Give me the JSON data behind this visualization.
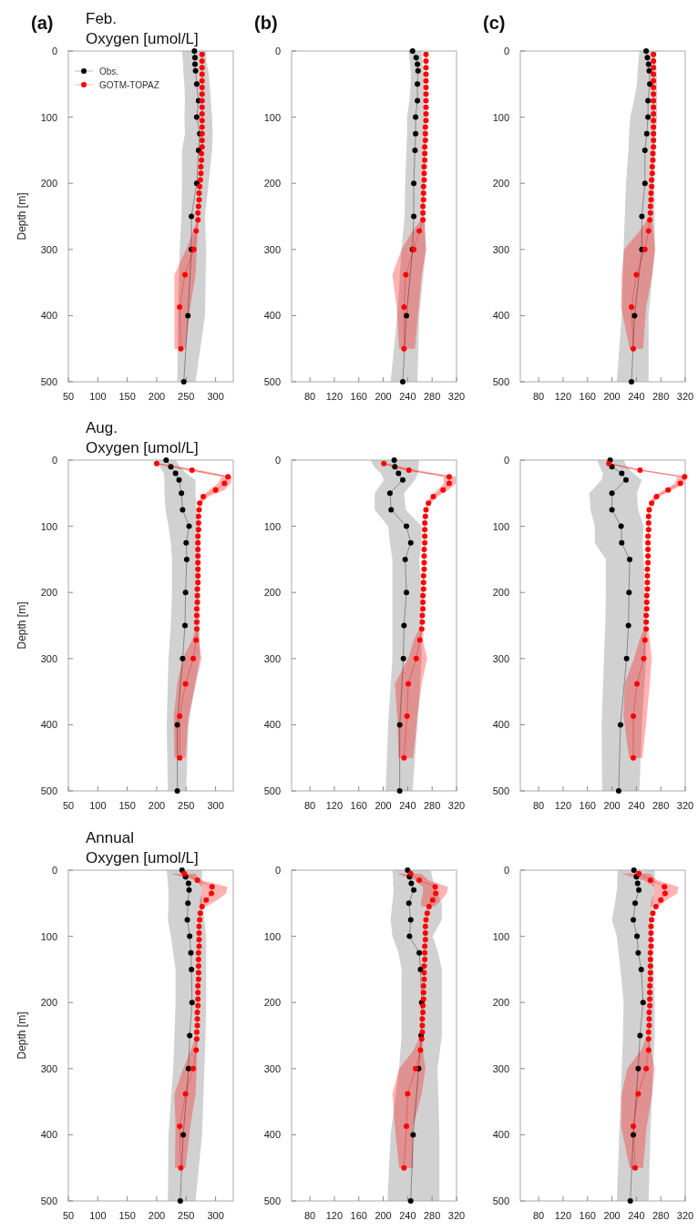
{
  "chart_data": [
    {
      "type": "line",
      "orientation": "horizontal",
      "title": "Feb.",
      "subtitle": "Oxygen [umol/L]",
      "ylabel": "Depth [m]",
      "annotations": [
        "(a)"
      ],
      "xlim": [
        50,
        330
      ],
      "xticks": [
        50,
        100,
        150,
        200,
        250,
        300
      ],
      "ylim": [
        500,
        0
      ],
      "yticks": [
        0,
        100,
        200,
        300,
        400,
        500
      ],
      "marker": "circle",
      "legend": "top left",
      "series": [
        {
          "name": "Obs.",
          "color": "#000000",
          "values": [
            264,
            265,
            265,
            266,
            268,
            271,
            268,
            273,
            271,
            268,
            259,
            259,
            253,
            246
          ],
          "x": [
            0,
            10,
            20,
            30,
            50,
            75,
            100,
            125,
            150,
            200,
            250,
            300,
            400,
            500
          ],
          "lower": [
            243,
            244,
            245,
            245,
            247,
            248,
            247,
            248,
            243,
            243,
            242,
            239,
            236,
            235
          ],
          "upper": [
            284,
            284,
            285,
            288,
            290,
            292,
            294,
            295,
            294,
            288,
            282,
            284,
            282,
            266
          ]
        },
        {
          "name": "GOTM-TOPAZ",
          "color": "#ff0000",
          "values": [
            277,
            277,
            277,
            277,
            277,
            277,
            277,
            277,
            277,
            277,
            277,
            277,
            277,
            277,
            277,
            276,
            276,
            275,
            275,
            274,
            273,
            272,
            272,
            271,
            270,
            270,
            267,
            263,
            248,
            239,
            241
          ],
          "x": [
            5,
            15,
            25,
            35,
            45,
            55,
            65,
            75,
            85,
            95,
            105,
            115,
            125,
            135,
            145,
            155,
            165,
            175,
            185,
            195,
            205,
            215,
            225,
            235,
            245,
            255,
            272,
            300,
            338,
            387,
            450
          ],
          "lower": [
            null,
            null,
            null,
            null,
            null,
            null,
            null,
            null,
            null,
            null,
            null,
            null,
            null,
            null,
            null,
            null,
            null,
            null,
            null,
            null,
            null,
            null,
            null,
            null,
            null,
            268,
            262,
            250,
            230,
            230,
            230
          ],
          "upper": [
            null,
            null,
            null,
            null,
            null,
            null,
            null,
            null,
            null,
            null,
            null,
            null,
            null,
            null,
            null,
            null,
            null,
            null,
            null,
            null,
            null,
            null,
            null,
            null,
            null,
            272,
            270,
            268,
            266,
            257,
            249
          ]
        }
      ]
    },
    {
      "type": "line",
      "orientation": "horizontal",
      "annotations": [
        "(b)"
      ],
      "xlim": [
        50,
        320
      ],
      "xticks": [
        80,
        120,
        160,
        200,
        240,
        280,
        320
      ],
      "ylim": [
        500,
        0
      ],
      "yticks": [
        0,
        100,
        200,
        300,
        400,
        500
      ],
      "marker": "circle",
      "series": [
        {
          "color": "#000000",
          "values": [
            248,
            254,
            256,
            257,
            256,
            256,
            253,
            253,
            252,
            250,
            250,
            248,
            238,
            232
          ],
          "x": [
            0,
            10,
            20,
            30,
            50,
            75,
            100,
            125,
            150,
            200,
            250,
            300,
            400,
            500
          ],
          "lower": [
            241,
            243,
            244,
            245,
            245,
            243,
            239,
            239,
            238,
            236,
            235,
            230,
            223,
            212
          ],
          "upper": [
            263,
            264,
            265,
            266,
            267,
            267,
            268,
            269,
            269,
            267,
            268,
            270,
            259,
            256
          ]
        },
        {
          "color": "#ff0000",
          "values": [
            270,
            270,
            270,
            270,
            270,
            270,
            270,
            270,
            270,
            270,
            270,
            269,
            269,
            269,
            268,
            268,
            268,
            267,
            267,
            267,
            266,
            266,
            266,
            265,
            265,
            265,
            259,
            250,
            237,
            234,
            234
          ],
          "x": [
            5,
            15,
            25,
            35,
            45,
            55,
            65,
            75,
            85,
            95,
            105,
            115,
            125,
            135,
            145,
            155,
            165,
            175,
            185,
            195,
            205,
            215,
            225,
            235,
            245,
            255,
            272,
            300,
            338,
            387,
            450
          ],
          "lower": [
            null,
            null,
            null,
            null,
            null,
            null,
            null,
            null,
            null,
            null,
            null,
            null,
            null,
            null,
            null,
            null,
            null,
            null,
            null,
            null,
            null,
            null,
            null,
            null,
            null,
            262,
            248,
            230,
            215,
            222,
            226
          ],
          "upper": [
            null,
            null,
            null,
            null,
            null,
            null,
            null,
            null,
            null,
            null,
            null,
            null,
            null,
            null,
            null,
            null,
            null,
            null,
            null,
            null,
            null,
            null,
            null,
            null,
            null,
            268,
            268,
            270,
            263,
            258,
            252
          ]
        }
      ]
    },
    {
      "type": "line",
      "orientation": "horizontal",
      "annotations": [
        "(c)"
      ],
      "xlim": [
        50,
        320
      ],
      "xticks": [
        80,
        120,
        160,
        200,
        240,
        280,
        320
      ],
      "ylim": [
        500,
        0
      ],
      "yticks": [
        0,
        100,
        200,
        300,
        400,
        500
      ],
      "marker": "circle",
      "series": [
        {
          "color": "#000000",
          "values": [
            256,
            258,
            260,
            261,
            262,
            259,
            259,
            257,
            254,
            254,
            249,
            249,
            237,
            232
          ],
          "x": [
            0,
            10,
            20,
            30,
            50,
            75,
            100,
            125,
            150,
            200,
            250,
            300,
            400,
            500
          ],
          "lower": [
            245,
            244,
            243,
            242,
            241,
            236,
            230,
            228,
            227,
            223,
            221,
            219,
            216,
            208
          ],
          "upper": [
            270,
            271,
            272,
            273,
            274,
            274,
            274,
            272,
            270,
            269,
            270,
            270,
            260,
            260
          ]
        },
        {
          "color": "#ff0000",
          "values": [
            268,
            268,
            268,
            268,
            268,
            268,
            268,
            268,
            268,
            268,
            268,
            268,
            268,
            268,
            268,
            267,
            267,
            266,
            266,
            265,
            265,
            264,
            264,
            263,
            263,
            262,
            260,
            254,
            240,
            232,
            235
          ],
          "x": [
            5,
            15,
            25,
            35,
            45,
            55,
            65,
            75,
            85,
            95,
            105,
            115,
            125,
            135,
            145,
            155,
            165,
            175,
            185,
            195,
            205,
            215,
            225,
            235,
            245,
            255,
            272,
            300,
            338,
            387,
            450
          ],
          "lower": [
            null,
            null,
            null,
            null,
            null,
            null,
            null,
            null,
            null,
            null,
            null,
            null,
            null,
            null,
            null,
            null,
            null,
            null,
            null,
            null,
            null,
            null,
            null,
            null,
            null,
            258,
            245,
            220,
            216,
            215,
            229
          ],
          "upper": [
            null,
            null,
            null,
            null,
            null,
            null,
            null,
            null,
            null,
            null,
            null,
            null,
            null,
            null,
            null,
            null,
            null,
            null,
            null,
            null,
            null,
            null,
            null,
            null,
            null,
            266,
            268,
            271,
            266,
            256,
            251
          ]
        }
      ]
    },
    {
      "type": "line",
      "orientation": "horizontal",
      "title": "Aug.",
      "subtitle": "Oxygen [umol/L]",
      "ylabel": "Depth [m]",
      "xlim": [
        50,
        330
      ],
      "xticks": [
        50,
        100,
        150,
        200,
        250,
        300
      ],
      "ylim": [
        500,
        0
      ],
      "yticks": [
        0,
        100,
        200,
        300,
        400,
        500
      ],
      "marker": "circle",
      "series": [
        {
          "color": "#000000",
          "values": [
            216,
            224,
            232,
            238,
            242,
            244,
            255,
            250,
            251,
            249,
            248,
            244,
            235,
            235
          ],
          "x": [
            0,
            10,
            20,
            30,
            50,
            75,
            100,
            125,
            150,
            200,
            250,
            300,
            400,
            500
          ],
          "lower": [
            198,
            205,
            212,
            213,
            213,
            215,
            220,
            224,
            226,
            226,
            224,
            220,
            217,
            219
          ],
          "upper": [
            232,
            240,
            250,
            266,
            266,
            267,
            273,
            273,
            273,
            273,
            273,
            273,
            254,
            250
          ]
        },
        {
          "color": "#ff0000",
          "values": [
            200,
            260,
            321,
            315,
            300,
            279,
            273,
            272,
            271,
            271,
            271,
            270,
            270,
            270,
            270,
            270,
            270,
            270,
            270,
            269,
            269,
            269,
            268,
            268,
            268,
            268,
            267,
            262,
            249,
            239,
            239
          ],
          "x": [
            5,
            15,
            25,
            35,
            45,
            55,
            65,
            75,
            85,
            95,
            105,
            115,
            125,
            135,
            145,
            155,
            165,
            175,
            185,
            195,
            205,
            215,
            225,
            235,
            245,
            255,
            272,
            300,
            338,
            387,
            450
          ],
          "lower": [
            195,
            250,
            310,
            304,
            289,
            277,
            270,
            null,
            null,
            null,
            null,
            null,
            null,
            null,
            null,
            null,
            null,
            null,
            null,
            null,
            null,
            null,
            null,
            null,
            null,
            266,
            260,
            244,
            235,
            229,
            230
          ],
          "upper": [
            203,
            273,
            328,
            326,
            315,
            288,
            276,
            null,
            null,
            null,
            null,
            null,
            null,
            null,
            null,
            null,
            null,
            null,
            null,
            null,
            null,
            null,
            null,
            null,
            null,
            271,
            272,
            276,
            266,
            254,
            249
          ]
        }
      ]
    },
    {
      "type": "line",
      "orientation": "horizontal",
      "xlim": [
        50,
        320
      ],
      "xticks": [
        80,
        120,
        160,
        200,
        240,
        280,
        320
      ],
      "ylim": [
        500,
        0
      ],
      "yticks": [
        0,
        100,
        200,
        300,
        400,
        500
      ],
      "marker": "circle",
      "series": [
        {
          "color": "#000000",
          "values": [
            218,
            219,
            225,
            232,
            211,
            213,
            238,
            245,
            236,
            238,
            234,
            233,
            227,
            227
          ],
          "x": [
            0,
            10,
            20,
            30,
            50,
            75,
            100,
            125,
            150,
            200,
            250,
            300,
            400,
            500
          ],
          "lower": [
            179,
            185,
            196,
            201,
            186,
            186,
            208,
            211,
            215,
            215,
            215,
            215,
            208,
            204
          ],
          "upper": [
            259,
            258,
            257,
            252,
            234,
            237,
            263,
            263,
            259,
            263,
            263,
            263,
            256,
            248
          ]
        },
        {
          "color": "#ff0000",
          "values": [
            201,
            242,
            308,
            308,
            298,
            282,
            274,
            270,
            269,
            268,
            268,
            268,
            268,
            267,
            267,
            267,
            267,
            266,
            266,
            266,
            265,
            265,
            265,
            264,
            264,
            263,
            260,
            254,
            241,
            239,
            234
          ],
          "x": [
            5,
            15,
            25,
            35,
            45,
            55,
            65,
            75,
            85,
            95,
            105,
            115,
            125,
            135,
            145,
            155,
            165,
            175,
            185,
            195,
            205,
            215,
            225,
            235,
            245,
            255,
            272,
            300,
            338,
            387,
            450
          ],
          "lower": [
            197,
            233,
            299,
            299,
            289,
            278,
            271,
            null,
            null,
            null,
            null,
            null,
            null,
            null,
            null,
            null,
            null,
            null,
            null,
            null,
            null,
            null,
            null,
            null,
            null,
            259,
            250,
            241,
            219,
            223,
            225
          ],
          "upper": [
            208,
            255,
            319,
            319,
            307,
            289,
            278,
            null,
            null,
            null,
            null,
            null,
            null,
            null,
            null,
            null,
            null,
            null,
            null,
            null,
            null,
            null,
            null,
            null,
            null,
            266,
            265,
            272,
            263,
            256,
            249
          ]
        }
      ]
    },
    {
      "type": "line",
      "orientation": "horizontal",
      "xlim": [
        50,
        320
      ],
      "xticks": [
        80,
        120,
        160,
        200,
        240,
        280,
        320
      ],
      "ylim": [
        500,
        0
      ],
      "yticks": [
        0,
        100,
        200,
        300,
        400,
        500
      ],
      "marker": "circle",
      "series": [
        {
          "color": "#000000",
          "values": [
            197,
            200,
            216,
            223,
            200,
            200,
            215,
            216,
            229,
            228,
            227,
            224,
            214,
            211
          ],
          "x": [
            0,
            10,
            20,
            30,
            50,
            75,
            100,
            125,
            150,
            200,
            250,
            300,
            400,
            500
          ],
          "lower": [
            176,
            180,
            185,
            183,
            163,
            165,
            172,
            172,
            190,
            190,
            189,
            187,
            183,
            184
          ],
          "upper": [
            219,
            225,
            235,
            249,
            241,
            243,
            252,
            250,
            252,
            254,
            255,
            256,
            249,
            245
          ]
        },
        {
          "color": "#ff0000",
          "values": [
            195,
            246,
            319,
            312,
            292,
            273,
            265,
            261,
            260,
            260,
            260,
            259,
            259,
            259,
            259,
            259,
            258,
            258,
            258,
            258,
            257,
            257,
            257,
            256,
            256,
            256,
            254,
            252,
            241,
            235,
            235
          ],
          "x": [
            5,
            15,
            25,
            35,
            45,
            55,
            65,
            75,
            85,
            95,
            105,
            115,
            125,
            135,
            145,
            155,
            165,
            175,
            185,
            195,
            205,
            215,
            225,
            235,
            245,
            255,
            272,
            300,
            338,
            387,
            450
          ],
          "lower": [
            192,
            238,
            307,
            303,
            285,
            267,
            262,
            null,
            null,
            null,
            null,
            null,
            null,
            null,
            null,
            null,
            null,
            null,
            null,
            null,
            null,
            null,
            null,
            null,
            null,
            252,
            245,
            236,
            221,
            219,
            228
          ],
          "upper": [
            199,
            253,
            320,
            319,
            299,
            278,
            268,
            null,
            null,
            null,
            null,
            null,
            null,
            null,
            null,
            null,
            null,
            null,
            null,
            null,
            null,
            null,
            null,
            null,
            null,
            259,
            262,
            265,
            262,
            257,
            250
          ]
        }
      ]
    },
    {
      "type": "line",
      "orientation": "horizontal",
      "title": "Annual",
      "subtitle": "Oxygen [umol/L]",
      "ylabel": "Depth [m]",
      "xlim": [
        50,
        330
      ],
      "xticks": [
        50,
        100,
        150,
        200,
        250,
        300
      ],
      "ylim": [
        500,
        0
      ],
      "yticks": [
        0,
        100,
        200,
        300,
        400,
        500
      ],
      "marker": "circle",
      "series": [
        {
          "color": "#000000",
          "values": [
            243,
            249,
            254,
            255,
            253,
            252,
            256,
            258,
            259,
            260,
            256,
            254,
            245,
            240
          ],
          "x": [
            0,
            10,
            20,
            30,
            50,
            75,
            100,
            125,
            150,
            200,
            250,
            300,
            400,
            500
          ],
          "lower": [
            217,
            218,
            219,
            220,
            220,
            219,
            224,
            228,
            232,
            232,
            230,
            228,
            220,
            219
          ],
          "upper": [
            277,
            277,
            277,
            277,
            277,
            281,
            284,
            284,
            284,
            284,
            283,
            281,
            277,
            266
          ]
        },
        {
          "color": "#ff0000",
          "values": [
            247,
            269,
            294,
            293,
            284,
            277,
            274,
            273,
            272,
            272,
            272,
            272,
            271,
            271,
            271,
            271,
            271,
            270,
            270,
            270,
            270,
            269,
            269,
            269,
            268,
            268,
            267,
            262,
            249,
            239,
            241
          ],
          "x": [
            5,
            15,
            25,
            35,
            45,
            55,
            65,
            75,
            85,
            95,
            105,
            115,
            125,
            135,
            145,
            155,
            165,
            175,
            185,
            195,
            205,
            215,
            225,
            235,
            245,
            255,
            272,
            300,
            338,
            387,
            450
          ],
          "lower": [
            224,
            265,
            277,
            277,
            273,
            273,
            null,
            null,
            null,
            null,
            null,
            null,
            null,
            null,
            null,
            null,
            null,
            null,
            null,
            null,
            null,
            null,
            null,
            null,
            null,
            265,
            258,
            245,
            230,
            232,
            231
          ],
          "upper": [
            265,
            276,
            320,
            318,
            303,
            284,
            null,
            null,
            null,
            null,
            null,
            null,
            null,
            null,
            null,
            null,
            null,
            null,
            null,
            null,
            null,
            null,
            null,
            null,
            null,
            270,
            268,
            268,
            266,
            257,
            249
          ]
        }
      ]
    },
    {
      "type": "line",
      "orientation": "horizontal",
      "xlim": [
        50,
        320
      ],
      "xticks": [
        80,
        120,
        160,
        200,
        240,
        280,
        320
      ],
      "ylim": [
        500,
        0
      ],
      "yticks": [
        0,
        100,
        200,
        300,
        400,
        500
      ],
      "marker": "circle",
      "series": [
        {
          "color": "#000000",
          "values": [
            240,
            243,
            246,
            250,
            242,
            245,
            243,
            259,
            261,
            263,
            262,
            258,
            249,
            245
          ],
          "x": [
            0,
            10,
            20,
            30,
            50,
            75,
            100,
            125,
            150,
            200,
            250,
            300,
            400,
            500
          ],
          "lower": [
            215,
            216,
            216,
            217,
            215,
            212,
            215,
            225,
            230,
            230,
            230,
            226,
            212,
            207
          ],
          "upper": [
            278,
            280,
            283,
            286,
            296,
            296,
            281,
            290,
            296,
            296,
            296,
            289,
            292,
            292
          ]
        },
        {
          "color": "#ff0000",
          "values": [
            245,
            259,
            285,
            286,
            281,
            275,
            272,
            270,
            269,
            269,
            269,
            268,
            268,
            268,
            267,
            267,
            267,
            266,
            266,
            266,
            265,
            265,
            264,
            264,
            264,
            263,
            261,
            253,
            240,
            238,
            234
          ],
          "x": [
            5,
            15,
            25,
            35,
            45,
            55,
            65,
            75,
            85,
            95,
            105,
            115,
            125,
            135,
            145,
            155,
            165,
            175,
            185,
            195,
            205,
            215,
            225,
            235,
            245,
            255,
            272,
            300,
            338,
            387,
            450
          ],
          "lower": [
            222,
            252,
            265,
            265,
            262,
            262,
            null,
            null,
            null,
            null,
            null,
            null,
            null,
            null,
            null,
            null,
            null,
            null,
            null,
            null,
            null,
            null,
            null,
            null,
            null,
            258,
            250,
            226,
            215,
            219,
            226
          ],
          "upper": [
            262,
            274,
            306,
            304,
            295,
            284,
            null,
            null,
            null,
            null,
            null,
            null,
            null,
            null,
            null,
            null,
            null,
            null,
            null,
            null,
            null,
            null,
            null,
            null,
            null,
            265,
            265,
            269,
            263,
            249,
            249
          ]
        }
      ]
    },
    {
      "type": "line",
      "orientation": "horizontal",
      "xlim": [
        50,
        320
      ],
      "xticks": [
        80,
        120,
        160,
        200,
        240,
        280,
        320
      ],
      "ylim": [
        500,
        0
      ],
      "yticks": [
        0,
        100,
        200,
        300,
        400,
        500
      ],
      "marker": "circle",
      "series": [
        {
          "color": "#000000",
          "values": [
            236,
            240,
            242,
            244,
            238,
            235,
            241,
            243,
            248,
            251,
            246,
            243,
            235,
            230
          ],
          "x": [
            0,
            10,
            20,
            30,
            50,
            75,
            100,
            125,
            150,
            200,
            250,
            300,
            400,
            500
          ],
          "lower": [
            209,
            209,
            209,
            208,
            205,
            200,
            208,
            211,
            214,
            219,
            218,
            216,
            212,
            208
          ],
          "upper": [
            270,
            270,
            270,
            269,
            267,
            265,
            265,
            266,
            268,
            270,
            270,
            267,
            263,
            260
          ]
        },
        {
          "color": "#ff0000",
          "values": [
            244,
            263,
            286,
            287,
            280,
            272,
            267,
            265,
            264,
            264,
            264,
            264,
            263,
            263,
            263,
            263,
            263,
            262,
            262,
            262,
            262,
            261,
            261,
            261,
            260,
            260,
            260,
            256,
            243,
            235,
            238
          ],
          "x": [
            5,
            15,
            25,
            35,
            45,
            55,
            65,
            75,
            85,
            95,
            105,
            115,
            125,
            135,
            145,
            155,
            165,
            175,
            185,
            195,
            205,
            215,
            225,
            235,
            245,
            255,
            272,
            300,
            338,
            387,
            450
          ],
          "lower": [
            215,
            252,
            269,
            269,
            265,
            263,
            null,
            null,
            null,
            null,
            null,
            null,
            null,
            null,
            null,
            null,
            null,
            null,
            null,
            null,
            null,
            null,
            null,
            null,
            null,
            255,
            248,
            225,
            216,
            215,
            229
          ],
          "upper": [
            262,
            274,
            309,
            307,
            290,
            276,
            null,
            null,
            null,
            null,
            null,
            null,
            null,
            null,
            null,
            null,
            null,
            null,
            null,
            null,
            null,
            null,
            null,
            null,
            null,
            262,
            264,
            270,
            266,
            257,
            251
          ]
        }
      ]
    }
  ]
}
